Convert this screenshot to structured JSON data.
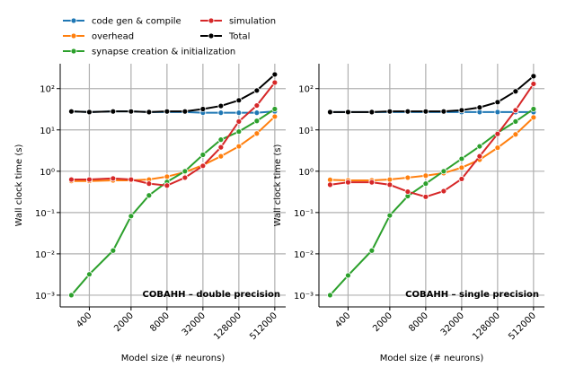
{
  "chart_data": [
    {
      "type": "line",
      "annotation": "COBAHH – double precision",
      "xlabel": "Model size (# neurons)",
      "ylabel": "Wall clock time (s)",
      "log_x": true,
      "log_y": true,
      "grid": true,
      "legend": "above",
      "x": [
        200,
        400,
        1000,
        2000,
        4000,
        8000,
        16000,
        32000,
        64000,
        128000,
        256000,
        512000
      ],
      "xlim": [
        130,
        780000
      ],
      "xticks": [
        400,
        2000,
        8000,
        32000,
        128000,
        512000
      ],
      "ylim": [
        0.00052,
        400
      ],
      "yticks": [
        {
          "value": 0.001,
          "label": "10⁻³"
        },
        {
          "value": 0.01,
          "label": "10⁻²"
        },
        {
          "value": 0.1,
          "label": "10⁻¹"
        },
        {
          "value": 1,
          "label": "10⁰"
        },
        {
          "value": 10,
          "label": "10¹"
        },
        {
          "value": 100,
          "label": "10²"
        }
      ],
      "series": [
        {
          "name": "code gen & compile",
          "color": "#1f77b4",
          "values": [
            28,
            27,
            28,
            28,
            27,
            27,
            27,
            26,
            26,
            26,
            26,
            28
          ]
        },
        {
          "name": "overhead",
          "color": "#ff7f0e",
          "values": [
            0.58,
            0.58,
            0.6,
            0.6,
            0.63,
            0.74,
            0.95,
            1.4,
            2.3,
            4.0,
            8.2,
            21
          ]
        },
        {
          "name": "synapse creation & initialization",
          "color": "#2ca02c",
          "values": [
            0.001,
            0.0032,
            0.012,
            0.082,
            0.26,
            0.55,
            1.0,
            2.5,
            5.8,
            9.1,
            16.5,
            32
          ]
        },
        {
          "name": "simulation",
          "color": "#d62728",
          "values": [
            0.63,
            0.63,
            0.67,
            0.63,
            0.5,
            0.45,
            0.7,
            1.35,
            3.8,
            16,
            39,
            140
          ]
        },
        {
          "name": "Total",
          "color": "#000000",
          "values": [
            28,
            27,
            28,
            28,
            27,
            28,
            28,
            32,
            38,
            52,
            90,
            220
          ]
        }
      ]
    },
    {
      "type": "line",
      "annotation": "COBAHH – single precision",
      "xlabel": "Model size (# neurons)",
      "ylabel": "Wall clock time (s)",
      "log_x": true,
      "log_y": true,
      "grid": true,
      "x": [
        200,
        400,
        1000,
        2000,
        4000,
        8000,
        16000,
        32000,
        64000,
        128000,
        256000,
        512000
      ],
      "xlim": [
        130,
        780000
      ],
      "xticks": [
        400,
        2000,
        8000,
        32000,
        128000,
        512000
      ],
      "ylim": [
        0.00052,
        400
      ],
      "yticks": [
        {
          "value": 0.001,
          "label": "10⁻³"
        },
        {
          "value": 0.01,
          "label": "10⁻²"
        },
        {
          "value": 0.1,
          "label": "10⁻¹"
        },
        {
          "value": 1,
          "label": "10⁰"
        },
        {
          "value": 10,
          "label": "10¹"
        },
        {
          "value": 100,
          "label": "10²"
        }
      ],
      "series": [
        {
          "color": "#1f77b4",
          "values": [
            27,
            27,
            27,
            27,
            27,
            27,
            27,
            27,
            27,
            27,
            27,
            27
          ]
        },
        {
          "color": "#ff7f0e",
          "values": [
            0.62,
            0.6,
            0.6,
            0.63,
            0.7,
            0.78,
            0.9,
            1.22,
            1.9,
            3.7,
            7.8,
            20
          ]
        },
        {
          "color": "#2ca02c",
          "values": [
            0.001,
            0.003,
            0.012,
            0.085,
            0.25,
            0.5,
            1.0,
            2.0,
            4.0,
            8.5,
            16,
            32
          ]
        },
        {
          "color": "#d62728",
          "values": [
            0.47,
            0.54,
            0.54,
            0.47,
            0.32,
            0.24,
            0.33,
            0.65,
            2.3,
            8,
            30,
            130
          ]
        },
        {
          "color": "#000000",
          "values": [
            27,
            27,
            27,
            28,
            28,
            28,
            28,
            30,
            35,
            47,
            86,
            200
          ]
        }
      ]
    }
  ]
}
